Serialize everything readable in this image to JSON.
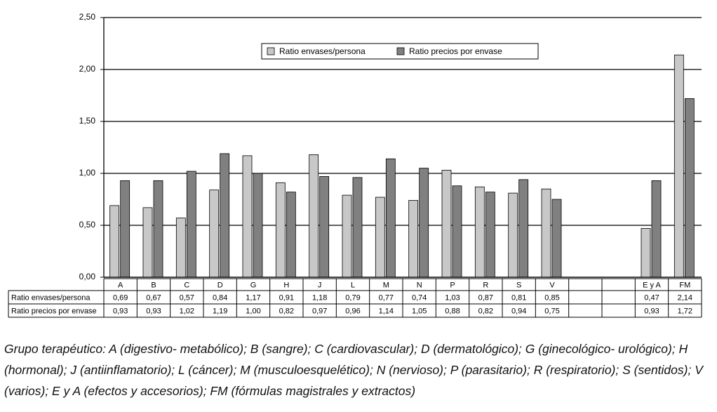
{
  "chart_data": {
    "type": "bar",
    "categories": [
      "A",
      "B",
      "C",
      "D",
      "G",
      "H",
      "J",
      "L",
      "M",
      "N",
      "P",
      "R",
      "S",
      "V",
      null,
      null,
      "E y A",
      "FM"
    ],
    "series": [
      {
        "name": "Ratio envases/persona",
        "color": "#c8c8c8",
        "values": [
          0.69,
          0.67,
          0.57,
          0.84,
          1.17,
          0.91,
          1.18,
          0.79,
          0.77,
          0.74,
          1.03,
          0.87,
          0.81,
          0.85,
          null,
          null,
          0.47,
          2.14
        ],
        "value_labels": [
          "0,69",
          "0,67",
          "0,57",
          "0,84",
          "1,17",
          "0,91",
          "1,18",
          "0,79",
          "0,77",
          "0,74",
          "1,03",
          "0,87",
          "0,81",
          "0,85",
          null,
          null,
          "0,47",
          "2,14"
        ]
      },
      {
        "name": "Ratio precios por envase",
        "color": "#808080",
        "values": [
          0.93,
          0.93,
          1.02,
          1.19,
          1.0,
          0.82,
          0.97,
          0.96,
          1.14,
          1.05,
          0.88,
          0.82,
          0.94,
          0.75,
          null,
          null,
          0.93,
          1.72
        ],
        "value_labels": [
          "0,93",
          "0,93",
          "1,02",
          "1,19",
          "1,00",
          "0,82",
          "0,97",
          "0,96",
          "1,14",
          "1,05",
          "0,88",
          "0,82",
          "0,94",
          "0,75",
          null,
          null,
          "0,93",
          "1,72"
        ]
      }
    ],
    "ylim": [
      0,
      2.5
    ],
    "yticks": [
      {
        "value": 0,
        "label": "0,00"
      },
      {
        "value": 0.5,
        "label": "0,50"
      },
      {
        "value": 1,
        "label": "1,00"
      },
      {
        "value": 1.5,
        "label": "1,50"
      },
      {
        "value": 2,
        "label": "2,00"
      },
      {
        "value": 2.5,
        "label": "2,50"
      }
    ],
    "grid": true,
    "caption": "Grupo terapéutico: A (digestivo- metabólico); B (sangre); C (cardiovascular); D (dermatológico); G (ginecológico- urológico); H (hormonal); J (antiinflamatorio); L (cáncer); M (musculoesquelético); N (nervioso); P (parasitario); R (respiratorio); S (sentidos); V (varios); E y A (efectos y accesorios); FM (fórmulas magistrales y extractos)"
  }
}
